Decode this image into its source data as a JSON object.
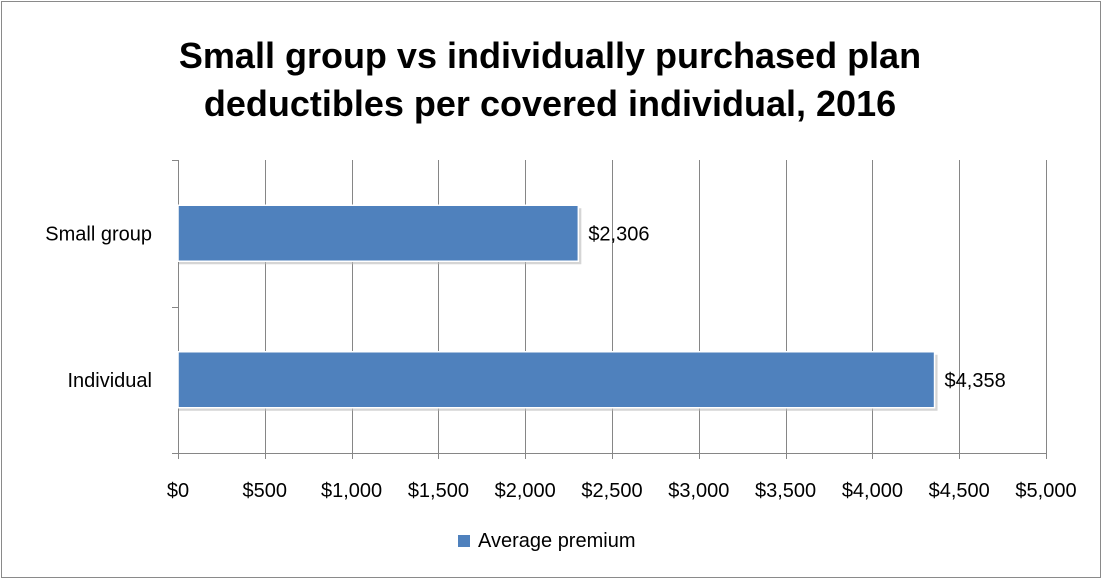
{
  "chart_data": {
    "type": "bar",
    "orientation": "horizontal",
    "title_lines": [
      "Small group vs individually purchased plan",
      "deductibles per covered individual, 2016"
    ],
    "categories": [
      "Small group",
      "Individual"
    ],
    "series": [
      {
        "name": "Average premium",
        "values": [
          2306,
          4358
        ],
        "value_labels": [
          "$2,306",
          "$4,358"
        ],
        "color": "#4f81bd"
      }
    ],
    "x_ticks": [
      0,
      500,
      1000,
      1500,
      2000,
      2500,
      3000,
      3500,
      4000,
      4500,
      5000
    ],
    "x_tick_labels": [
      "$0",
      "$500",
      "$1,000",
      "$1,500",
      "$2,000",
      "$2,500",
      "$3,000",
      "$3,500",
      "$4,000",
      "$4,500",
      "$5,000"
    ],
    "xlim": [
      0,
      5000
    ],
    "xlabel": "",
    "ylabel": "",
    "grid": true,
    "legend_position": "bottom"
  },
  "colors": {
    "bar": "#4f81bd",
    "bar_border": "#ffffff",
    "grid": "#868686",
    "frame": "#8a8a8a"
  }
}
